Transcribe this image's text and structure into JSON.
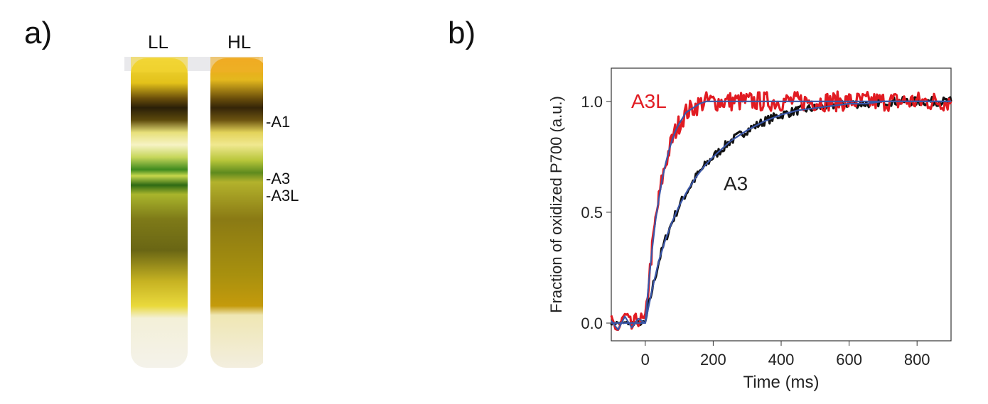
{
  "panel_a": {
    "label": "a)",
    "tubes": [
      "LL",
      "HL"
    ],
    "bands": [
      "-A1",
      "-A3",
      "-A3L"
    ]
  },
  "panel_b": {
    "label": "b)"
  },
  "chart_data": {
    "type": "line",
    "title": "",
    "xlabel": "Time (ms)",
    "ylabel": "Fraction of oxidized P700 (a.u.)",
    "xlim": [
      -100,
      900
    ],
    "ylim": [
      -0.08,
      1.15
    ],
    "x_ticks": [
      0,
      200,
      400,
      600,
      800
    ],
    "x_tick_labels": [
      "0",
      "200",
      "400",
      "600",
      "800"
    ],
    "y_ticks": [
      0.0,
      0.5,
      1.0
    ],
    "y_tick_labels": [
      "0.0",
      "0.5",
      "1.0"
    ],
    "grid": false,
    "colors": {
      "A3L": "#e11b22",
      "A3": "#111111",
      "fit": "#3a56a8"
    },
    "series": [
      {
        "name": "A3L",
        "x": [
          -100,
          -80,
          -60,
          -40,
          -20,
          0,
          10,
          20,
          30,
          40,
          50,
          60,
          70,
          80,
          90,
          100,
          120,
          140,
          160,
          180,
          200,
          250,
          300,
          350,
          400,
          450,
          500,
          550,
          600,
          650,
          700,
          750,
          800,
          850,
          900
        ],
        "values": [
          0.01,
          -0.03,
          0.03,
          -0.02,
          0.02,
          0.0,
          0.18,
          0.33,
          0.46,
          0.56,
          0.65,
          0.72,
          0.78,
          0.83,
          0.87,
          0.9,
          0.95,
          0.97,
          0.99,
          1.0,
          1.0,
          1.0,
          1.0,
          1.0,
          1.0,
          1.0,
          1.0,
          1.0,
          1.0,
          1.0,
          1.0,
          1.0,
          1.0,
          1.0,
          1.0
        ]
      },
      {
        "name": "A3",
        "x": [
          -100,
          -50,
          0,
          20,
          40,
          60,
          80,
          100,
          125,
          150,
          175,
          200,
          250,
          300,
          350,
          400,
          450,
          500,
          550,
          600,
          650,
          700,
          750,
          800,
          850,
          900
        ],
        "values": [
          0.0,
          0.0,
          0.0,
          0.15,
          0.28,
          0.38,
          0.46,
          0.53,
          0.6,
          0.66,
          0.71,
          0.75,
          0.82,
          0.87,
          0.91,
          0.94,
          0.96,
          0.97,
          0.98,
          0.99,
          0.99,
          1.0,
          1.0,
          1.0,
          1.0,
          1.0
        ]
      }
    ],
    "annotations": [
      "A3L",
      "A3"
    ]
  }
}
